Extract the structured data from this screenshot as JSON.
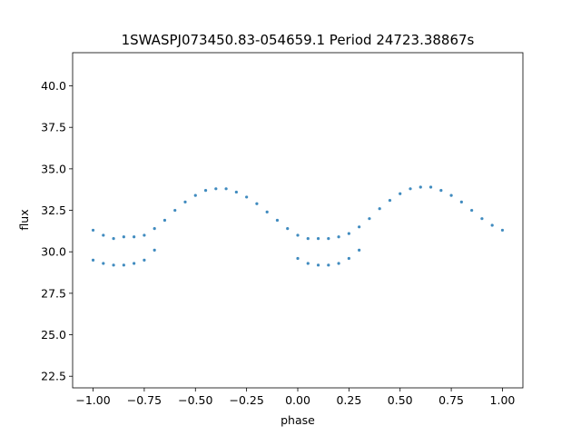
{
  "chart_data": {
    "type": "scatter",
    "title": "1SWASPJ073450.83-054659.1 Period 24723.38867s",
    "xlabel": "phase",
    "ylabel": "flux",
    "xlim": [
      -1.1,
      1.1
    ],
    "ylim": [
      21.8,
      42.0
    ],
    "x_ticks": [
      -1.0,
      -0.75,
      -0.5,
      -0.25,
      0.0,
      0.25,
      0.5,
      0.75,
      1.0
    ],
    "x_tick_labels": [
      "−1.00",
      "−0.75",
      "−0.50",
      "−0.25",
      "0.00",
      "0.25",
      "0.50",
      "0.75",
      "1.00"
    ],
    "y_ticks": [
      22.5,
      25.0,
      27.5,
      30.0,
      32.5,
      35.0,
      37.5,
      40.0
    ],
    "y_tick_labels": [
      "22.5",
      "25.0",
      "27.5",
      "30.0",
      "32.5",
      "35.0",
      "37.5",
      "40.0"
    ],
    "grid": false,
    "marker_color": "#1f77b4",
    "series": [
      {
        "x": [
          -1.0,
          -0.95,
          -0.9,
          -0.85,
          -0.8,
          -0.75,
          -0.7,
          -0.65,
          -0.6,
          -0.55,
          -0.5,
          -0.45,
          -0.4,
          -0.35,
          -0.3,
          -0.25,
          -0.2,
          -0.15,
          -0.1,
          -0.05,
          0.0,
          0.05,
          0.1,
          0.15,
          0.2,
          0.25,
          0.3,
          0.35,
          0.4,
          0.45,
          0.5,
          0.55,
          0.6,
          0.65,
          0.7,
          0.75,
          0.8,
          0.85,
          0.9,
          0.95,
          1.0
        ],
        "y": [
          31.3,
          31.0,
          30.8,
          30.9,
          30.9,
          31.0,
          31.4,
          31.9,
          32.5,
          33.0,
          33.4,
          33.7,
          33.8,
          33.8,
          33.6,
          33.3,
          32.9,
          32.4,
          31.9,
          31.4,
          31.0,
          30.8,
          30.8,
          30.8,
          30.9,
          31.1,
          31.5,
          32.0,
          32.6,
          33.1,
          33.5,
          33.8,
          33.9,
          33.9,
          33.7,
          33.4,
          33.0,
          32.5,
          32.0,
          31.6,
          31.3
        ]
      },
      {
        "x": [
          -1.0,
          -0.95,
          -0.9,
          -0.85,
          -0.8,
          -0.75,
          -0.7,
          0.0,
          0.05,
          0.1,
          0.15,
          0.2,
          0.25,
          0.3
        ],
        "y": [
          29.5,
          29.3,
          29.2,
          29.2,
          29.3,
          29.5,
          30.1,
          29.6,
          29.3,
          29.2,
          29.2,
          29.3,
          29.6,
          30.1
        ]
      }
    ]
  }
}
